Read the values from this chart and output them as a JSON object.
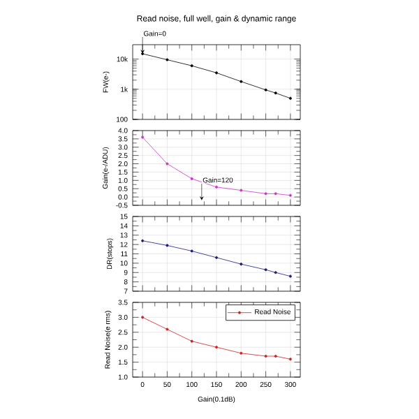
{
  "chart_data": [
    {
      "type": "line",
      "title": "Read noise, full well, gain & dynamic range",
      "ylabel": "FW(e-)",
      "log": "y",
      "xlim": [
        -20,
        320
      ],
      "xticks": [
        0,
        50,
        100,
        150,
        200,
        250,
        300
      ],
      "ylim": [
        100,
        30000
      ],
      "yticks": [
        {
          "value": 100,
          "label": "100"
        },
        {
          "value": 1000,
          "label": "1k"
        },
        {
          "value": 10000,
          "label": "10k"
        }
      ],
      "grid": true,
      "tick_labels": "y",
      "marker": "circle",
      "x": [
        0,
        50,
        100,
        150,
        200,
        250,
        270,
        300
      ],
      "annotations": [
        {
          "text": "Gain=0",
          "x": 0,
          "y": 15000
        }
      ],
      "series": [
        {
          "color": "#000000",
          "values": [
            15000,
            9500,
            6000,
            3500,
            1800,
            950,
            750,
            500
          ]
        }
      ]
    },
    {
      "type": "line",
      "ylabel": "Gain(e-/ADU)",
      "xlim": [
        -20,
        320
      ],
      "xticks": [
        0,
        50,
        100,
        150,
        200,
        250,
        300
      ],
      "ylim": [
        -0.5,
        4.0
      ],
      "yticks": [
        -0.5,
        {
          "value": 0,
          "label": "0.0"
        },
        0.5,
        {
          "value": 1,
          "label": "1.0"
        },
        1.5,
        {
          "value": 2,
          "label": "2.0"
        },
        2.5,
        {
          "value": 3,
          "label": "3.0"
        },
        3.5,
        {
          "value": 4,
          "label": "4.0"
        }
      ],
      "grid": true,
      "tick_labels": "y",
      "marker": "circle",
      "x": [
        0,
        50,
        100,
        150,
        200,
        250,
        270,
        300
      ],
      "annotations": [
        {
          "text": "Gain=120",
          "x": 120,
          "y": -0.2
        }
      ],
      "series": [
        {
          "color": "#cc33cc",
          "values": [
            3.6,
            2.0,
            1.1,
            0.6,
            0.4,
            0.2,
            0.2,
            0.1
          ]
        }
      ]
    },
    {
      "type": "line",
      "ylabel": "DR(stops)",
      "xlim": [
        -20,
        320
      ],
      "xticks": [
        0,
        50,
        100,
        150,
        200,
        250,
        300
      ],
      "ylim": [
        7,
        15
      ],
      "yticks": [
        7,
        8,
        9,
        10,
        11,
        12,
        13,
        14,
        15
      ],
      "grid": true,
      "tick_labels": "y",
      "marker": "circle",
      "x": [
        0,
        50,
        100,
        150,
        200,
        250,
        270,
        300
      ],
      "series": [
        {
          "color": "#1a1a80",
          "values": [
            12.4,
            11.9,
            11.3,
            10.6,
            9.9,
            9.3,
            9.0,
            8.6
          ]
        }
      ]
    },
    {
      "type": "line",
      "ylabel": "Read Noise(e rms)",
      "xlabel": "Gain(0.1dB)",
      "xlim": [
        -20,
        320
      ],
      "xticks": [
        0,
        50,
        100,
        150,
        200,
        250,
        300
      ],
      "ylim": [
        1.0,
        3.5
      ],
      "yticks": [
        {
          "value": 1,
          "label": "1.0"
        },
        1.5,
        {
          "value": 2,
          "label": "2.0"
        },
        2.5,
        {
          "value": 3,
          "label": "3.0"
        },
        3.5
      ],
      "grid": true,
      "legend": "top right",
      "marker": "circle",
      "x": [
        0,
        50,
        100,
        150,
        200,
        250,
        270,
        300
      ],
      "series": [
        {
          "name": "Read Noise",
          "color": "#cc2222",
          "values": [
            3.0,
            2.6,
            2.2,
            2.0,
            1.8,
            1.7,
            1.7,
            1.6
          ]
        }
      ]
    }
  ]
}
